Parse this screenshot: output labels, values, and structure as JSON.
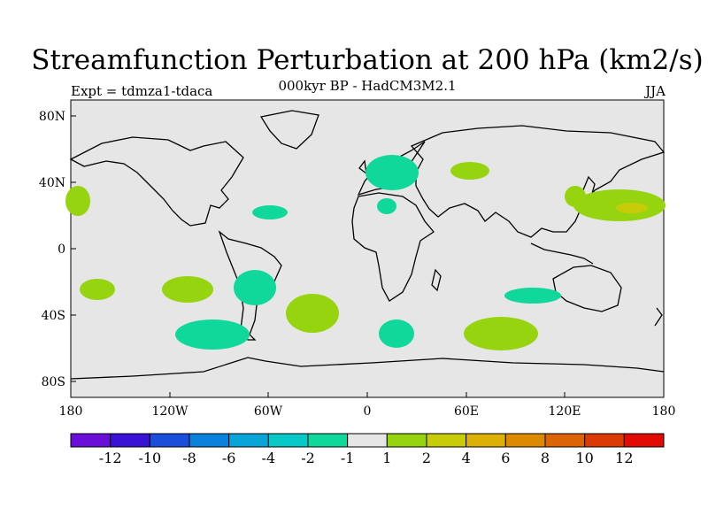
{
  "title": "Streamfunction Perturbation at 200 hPa (km2/s)",
  "subtitle": "000kyr BP - HadCM3M2.1",
  "expt_label": "Expt = tdmza1-tdaca",
  "season": "JJA",
  "map": {
    "lat_ticks": [
      "80N",
      "40N",
      "0",
      "40S",
      "80S"
    ],
    "lon_ticks": [
      "180",
      "120W",
      "60W",
      "0",
      "60E",
      "120E",
      "180"
    ],
    "ocean_color": "#e6e6e6"
  },
  "colorbar": {
    "colors": [
      "#6a0fd8",
      "#3a12d6",
      "#1a4fdc",
      "#0a82dd",
      "#08a6d8",
      "#08c8c8",
      "#10d89a",
      "#e6e6e6",
      "#96d410",
      "#c8cc08",
      "#dcb005",
      "#dc8a04",
      "#dc6404",
      "#dc3a05",
      "#e20a05"
    ],
    "labels": [
      "-12",
      "-10",
      "-8",
      "-6",
      "-4",
      "-2",
      "-1",
      "1",
      "2",
      "4",
      "6",
      "8",
      "10",
      "12"
    ]
  }
}
